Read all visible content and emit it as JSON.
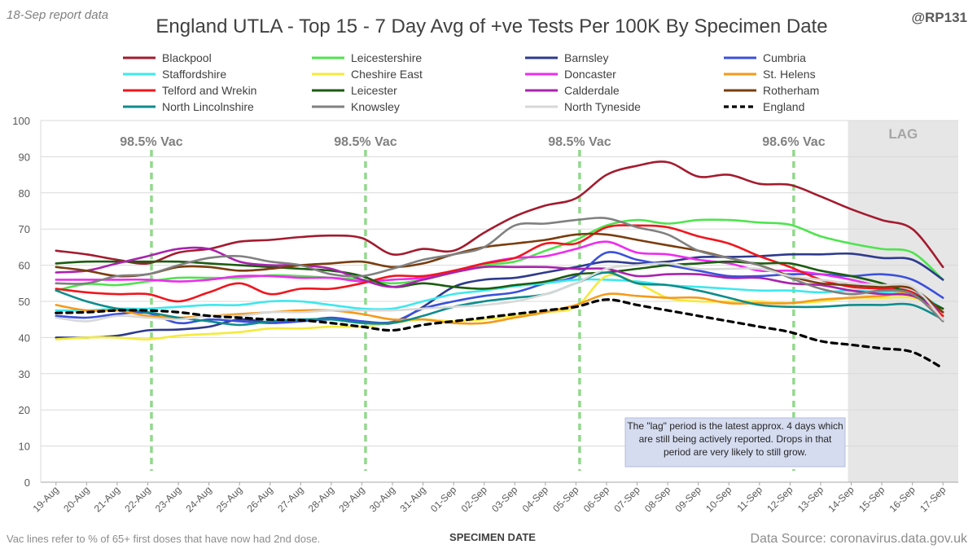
{
  "header": {
    "report_label": "18-Sep report data",
    "handle": "@RP131"
  },
  "footer": {
    "vac_note": "Vac lines refer to % of 65+ first doses that have now had 2nd dose.",
    "source": "Data Source: coronavirus.data.gov.uk"
  },
  "colors": {
    "vac_line": "#92d88c",
    "lag_shade": "#e6e6e6",
    "grid": "#d9d9d9",
    "lag_text": "#a6a6a6"
  },
  "chart_data": {
    "type": "line",
    "title": "England UTLA - Top 15 - 7 Day Avg of +ve Tests Per 100K By Specimen Date",
    "xlabel": "SPECIMEN DATE",
    "ylabel": "",
    "ylim": [
      0,
      100
    ],
    "yticks": [
      0,
      10,
      20,
      30,
      40,
      50,
      60,
      70,
      80,
      90,
      100
    ],
    "grid": true,
    "legend_position": "top",
    "categories": [
      "19-Aug",
      "20-Aug",
      "21-Aug",
      "22-Aug",
      "23-Aug",
      "24-Aug",
      "25-Aug",
      "26-Aug",
      "27-Aug",
      "28-Aug",
      "29-Aug",
      "30-Aug",
      "31-Aug",
      "01-Sep",
      "02-Sep",
      "03-Sep",
      "04-Sep",
      "05-Sep",
      "06-Sep",
      "07-Sep",
      "08-Sep",
      "09-Sep",
      "10-Sep",
      "11-Sep",
      "12-Sep",
      "13-Sep",
      "14-Sep",
      "15-Sep",
      "16-Sep",
      "17-Sep"
    ],
    "lag_region": {
      "start": "14-Sep",
      "end": "17-Sep",
      "label": "LAG"
    },
    "vac_lines": [
      {
        "at": "22-Aug",
        "label": "98.5% Vac"
      },
      {
        "at": "29-Aug",
        "label": "98.5% Vac"
      },
      {
        "at": "05-Sep",
        "label": "98.5% Vac"
      },
      {
        "at": "12-Sep",
        "label": "98.6% Vac"
      }
    ],
    "annotation": "The \"lag\" period is the latest approx. 4 days which are still being actively reported. Drops in that period are very likely to still grow.",
    "series": [
      {
        "name": "Blackpool",
        "color": "#a31b2e",
        "dashed": false,
        "values": [
          64,
          63,
          61.5,
          60.5,
          63.5,
          64.5,
          66.5,
          67,
          67.8,
          68.2,
          67.5,
          63,
          64.5,
          64,
          69,
          73.5,
          76.5,
          78.5,
          85,
          87.5,
          88.5,
          84.5,
          85,
          82.5,
          82.2,
          79,
          75.5,
          72.5,
          70,
          59.5
        ]
      },
      {
        "name": "Leicestershire",
        "color": "#4ee44e",
        "dashed": false,
        "values": [
          53,
          54.8,
          54.5,
          55.5,
          56.5,
          56.5,
          56.5,
          57.2,
          57,
          56.5,
          56,
          55,
          56,
          58,
          60,
          61,
          64,
          67,
          71,
          72.5,
          71.5,
          72.5,
          72.5,
          71.8,
          71.2,
          68,
          66,
          64.5,
          63.5,
          56
        ]
      },
      {
        "name": "Barnsley",
        "color": "#2e3a8c",
        "dashed": false,
        "values": [
          40,
          40,
          40.5,
          42,
          42.2,
          43,
          45,
          44.2,
          44.5,
          45,
          44.3,
          44,
          48.5,
          54,
          56,
          56.5,
          58,
          59.5,
          61,
          60.5,
          61,
          62.2,
          62.3,
          62.5,
          63,
          63,
          63.2,
          62,
          61.5,
          56
        ]
      },
      {
        "name": "Cumbria",
        "color": "#3b50dc",
        "dashed": false,
        "values": [
          46,
          45.5,
          46.5,
          46.8,
          44,
          45,
          44.5,
          44,
          44.5,
          45.5,
          44.5,
          44.3,
          48,
          50,
          51.5,
          52.5,
          55,
          57,
          63.5,
          61.5,
          60,
          58.5,
          57,
          57,
          57.5,
          57.5,
          57,
          57.5,
          56,
          51
        ]
      },
      {
        "name": "Staffordshire",
        "color": "#3de8ee",
        "dashed": false,
        "values": [
          47.5,
          47.5,
          48,
          48,
          48.5,
          49,
          49,
          50,
          50,
          49,
          48,
          48,
          50,
          52,
          53,
          54.2,
          55,
          56,
          56,
          55.5,
          54.5,
          54,
          53.5,
          53,
          53,
          52.5,
          53,
          52.5,
          52.5,
          48
        ]
      },
      {
        "name": "Cheshire East",
        "color": "#f5ea3c",
        "dashed": false,
        "values": [
          39.5,
          40,
          40,
          39.5,
          40.5,
          41,
          41.5,
          42.5,
          42.5,
          43,
          43,
          44,
          45,
          44.5,
          45,
          46,
          47,
          48.5,
          57,
          55,
          51,
          50,
          50,
          50,
          49.5,
          50,
          51,
          51,
          51,
          48
        ]
      },
      {
        "name": "Doncaster",
        "color": "#ee2cee",
        "dashed": false,
        "values": [
          56,
          56,
          56,
          56,
          55.5,
          56,
          57,
          57,
          56.5,
          56.5,
          55.5,
          56,
          56.5,
          58,
          60.5,
          62,
          62.5,
          64.5,
          66.5,
          63.5,
          63,
          61.5,
          60.5,
          58.5,
          58.5,
          57.5,
          56,
          54,
          52.5,
          47
        ]
      },
      {
        "name": "St. Helens",
        "color": "#f59a1b",
        "dashed": false,
        "values": [
          49,
          47.5,
          47.5,
          46,
          45.5,
          46,
          46.5,
          47,
          47.5,
          47.5,
          46.5,
          45,
          45,
          44,
          44,
          45.5,
          47,
          49,
          52,
          51.5,
          51,
          51,
          49.5,
          49.5,
          49.5,
          50.5,
          51,
          51.5,
          52,
          46
        ]
      },
      {
        "name": "Telford and Wrekin",
        "color": "#f0161e",
        "dashed": false,
        "values": [
          53.5,
          52.5,
          52,
          52,
          50,
          52.5,
          55,
          52,
          53.5,
          53.5,
          55,
          57,
          57,
          58.5,
          60.5,
          62,
          66,
          66,
          70.5,
          71,
          70.5,
          68,
          66,
          62.5,
          59.5,
          56,
          54,
          53.5,
          52.5,
          46
        ]
      },
      {
        "name": "Leicester",
        "color": "#1b5c10",
        "dashed": false,
        "values": [
          60.5,
          61,
          61,
          61,
          61,
          60.5,
          60,
          59.5,
          59,
          58.5,
          57,
          54,
          55,
          54,
          53.5,
          54.5,
          55.5,
          57.5,
          58,
          59,
          60,
          60.5,
          61,
          60.5,
          60.5,
          58.5,
          57,
          55,
          52,
          48
        ]
      },
      {
        "name": "Calderdale",
        "color": "#a923ad",
        "dashed": false,
        "values": [
          58,
          58.5,
          60.5,
          62.5,
          64.5,
          64.5,
          61,
          60,
          60,
          59,
          56,
          54,
          56,
          58,
          59.5,
          59.5,
          59.5,
          59,
          59,
          57,
          57.5,
          57.5,
          56.5,
          56.5,
          55,
          54.5,
          53,
          52,
          51.5,
          47
        ]
      },
      {
        "name": "Rotherham",
        "color": "#7a3d0e",
        "dashed": false,
        "values": [
          59.5,
          58.5,
          57,
          57.5,
          59.5,
          59.5,
          58.5,
          59,
          60,
          60.5,
          61,
          59.5,
          60.5,
          63,
          65,
          66,
          67,
          68.5,
          68.5,
          67,
          65.5,
          64,
          62,
          60,
          57,
          55,
          54.5,
          54,
          53.5,
          47
        ]
      },
      {
        "name": "North Lincolnshire",
        "color": "#0e8c8c",
        "dashed": false,
        "values": [
          53,
          50,
          48,
          47,
          45.5,
          44.5,
          43.5,
          44.5,
          45,
          45,
          44,
          44,
          46,
          48.5,
          50,
          51,
          52,
          55,
          58,
          55,
          54.5,
          53,
          51,
          49,
          48.5,
          48.5,
          49,
          49,
          49,
          45
        ]
      },
      {
        "name": "Knowsley",
        "color": "#808080",
        "dashed": false,
        "values": [
          55,
          55,
          57,
          57.5,
          60,
          62,
          62.5,
          61,
          60,
          57.5,
          57,
          59,
          61.5,
          63,
          65,
          71,
          71.5,
          72.5,
          73,
          70.5,
          68.5,
          64,
          62,
          60,
          56.5,
          53.5,
          52,
          53,
          52,
          44.5
        ]
      },
      {
        "name": "North Tyneside",
        "color": "#d8d8d8",
        "dashed": false,
        "values": [
          45.5,
          44.5,
          46,
          45.5,
          45,
          46,
          46,
          47,
          47,
          47.5,
          47.5,
          47.5,
          48,
          48.5,
          49,
          50,
          52,
          55,
          59,
          60,
          60.5,
          59,
          59,
          59,
          57,
          56,
          55,
          54.5,
          54,
          45
        ]
      },
      {
        "name": "England",
        "color": "#000000",
        "dashed": true,
        "values": [
          46.8,
          47,
          47.5,
          47.5,
          47,
          46,
          45.5,
          45,
          44.8,
          44,
          43,
          42,
          43.5,
          44.5,
          45.5,
          46.5,
          47.5,
          48.5,
          50.5,
          49,
          47.5,
          46,
          44.5,
          43,
          41.5,
          39,
          38,
          37,
          36,
          31.5
        ]
      }
    ]
  }
}
